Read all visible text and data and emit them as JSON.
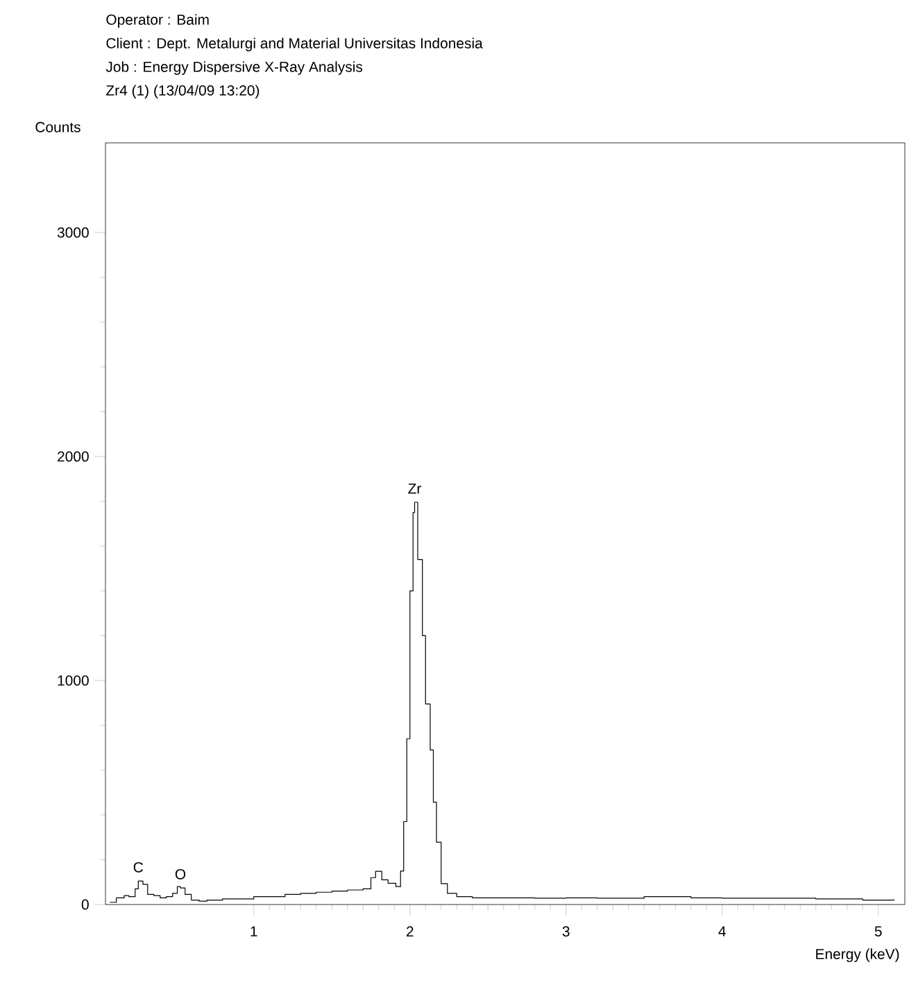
{
  "chart_data": {
    "type": "step",
    "annotations": [
      "Operator : Baim",
      "Client : Dept. Metalurgi and Material Universitas Indonesia",
      "Job : Energy Dispersive X-Ray Analysis",
      "Zr4 (1) (13/04/09 13:20)",
      {
        "text": "C",
        "x": 0.26,
        "y": 105
      },
      {
        "text": "O",
        "x": 0.53,
        "y": 74
      },
      {
        "text": "Zr",
        "x": 2.03,
        "y": 1796
      }
    ],
    "ylabel": "Counts",
    "xlabel": "Energy (keV)",
    "color": "#000000",
    "xlim": [
      0.05,
      5.17
    ],
    "ylim": [
      0,
      3400
    ],
    "xticks": [
      1,
      2,
      3,
      4,
      5
    ],
    "yticks": [
      0,
      1000,
      2000,
      3000
    ],
    "grid": false,
    "x": [
      0.08,
      0.12,
      0.17,
      0.2,
      0.24,
      0.26,
      0.29,
      0.32,
      0.36,
      0.4,
      0.44,
      0.48,
      0.51,
      0.53,
      0.56,
      0.6,
      0.65,
      0.7,
      0.8,
      0.9,
      1.0,
      1.1,
      1.2,
      1.3,
      1.4,
      1.5,
      1.6,
      1.7,
      1.75,
      1.78,
      1.82,
      1.86,
      1.91,
      1.94,
      1.96,
      1.98,
      2.0,
      2.02,
      2.03,
      2.05,
      2.08,
      2.1,
      2.13,
      2.15,
      2.17,
      2.2,
      2.24,
      2.3,
      2.4,
      2.6,
      2.8,
      3.0,
      3.2,
      3.5,
      3.8,
      4.0,
      4.3,
      4.6,
      4.9,
      5.1
    ],
    "values": [
      10,
      30,
      40,
      35,
      70,
      105,
      90,
      45,
      40,
      30,
      35,
      50,
      80,
      74,
      45,
      20,
      15,
      20,
      25,
      25,
      35,
      35,
      45,
      50,
      55,
      60,
      65,
      70,
      120,
      148,
      110,
      95,
      80,
      150,
      370,
      740,
      1400,
      1750,
      1796,
      1540,
      1200,
      895,
      690,
      457,
      278,
      93,
      50,
      35,
      30,
      30,
      28,
      30,
      28,
      35,
      30,
      28,
      28,
      25,
      20,
      22
    ]
  }
}
